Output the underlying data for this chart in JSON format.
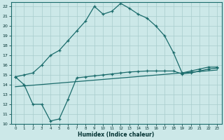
{
  "xlabel": "Humidex (Indice chaleur)",
  "bg_color": "#cce8e8",
  "line_color": "#1a6b6b",
  "xlim": [
    -0.5,
    23.5
  ],
  "ylim": [
    10,
    22.4
  ],
  "xticks": [
    0,
    1,
    2,
    3,
    4,
    5,
    6,
    7,
    8,
    9,
    10,
    11,
    12,
    13,
    14,
    15,
    16,
    17,
    18,
    19,
    20,
    21,
    22,
    23
  ],
  "yticks": [
    10,
    11,
    12,
    13,
    14,
    15,
    16,
    17,
    18,
    19,
    20,
    21,
    22
  ],
  "line1_x": [
    0,
    1,
    2,
    3,
    4,
    5,
    6,
    7,
    8,
    9,
    10,
    11,
    12,
    13,
    14,
    15,
    16,
    17,
    18,
    19,
    20,
    21,
    22,
    23
  ],
  "line1_y": [
    14.8,
    15.0,
    15.2,
    16.0,
    17.0,
    17.5,
    18.5,
    19.5,
    20.5,
    22.0,
    21.2,
    21.5,
    22.3,
    21.8,
    21.2,
    20.8,
    20.0,
    19.0,
    17.3,
    15.2,
    15.4,
    15.6,
    15.8,
    15.8
  ],
  "line2_x": [
    0,
    1,
    2,
    3,
    4,
    5,
    6,
    7,
    8,
    9,
    10,
    11,
    12,
    13,
    14,
    15,
    16,
    17,
    18,
    19,
    20,
    21,
    22,
    23
  ],
  "line2_y": [
    14.8,
    14.0,
    12.0,
    12.0,
    10.3,
    10.5,
    12.5,
    14.7,
    14.8,
    14.9,
    15.0,
    15.1,
    15.2,
    15.3,
    15.35,
    15.4,
    15.4,
    15.4,
    15.4,
    15.1,
    15.2,
    15.4,
    15.6,
    15.7
  ],
  "line3_x": [
    0,
    23
  ],
  "line3_y": [
    13.8,
    15.5
  ]
}
